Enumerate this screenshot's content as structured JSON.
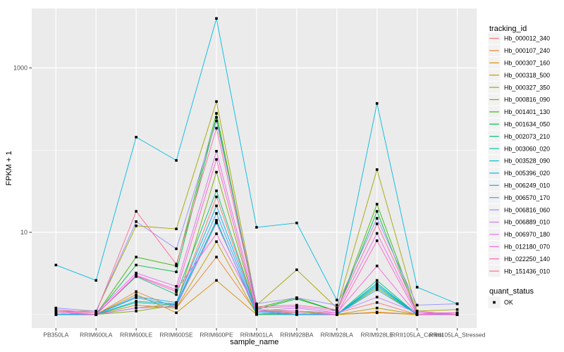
{
  "figure": {
    "background": "#FFFFFF",
    "panel_background": "#EBEBEB",
    "grid_color": "#FFFFFF",
    "axis_text_color": "#4D4D4D",
    "axis_title_color": "#000000",
    "tick_color": "#333333",
    "point_color": "#000000",
    "legend_key_fill": "#F2F2F2"
  },
  "legend": {
    "tracking_title": "tracking_id",
    "quant_title": "quant_status",
    "quant_items": [
      {
        "label": "OK",
        "marker": "filled-black-square"
      }
    ]
  },
  "chart_data": {
    "type": "line",
    "title": "",
    "xlabel": "sample_name",
    "ylabel": "FPKM + 1",
    "y_scale": "log10",
    "y_tick_values": [
      10,
      1000
    ],
    "y_tick_labels": [
      "10",
      "1000"
    ],
    "y_minor_values": [
      1,
      100
    ],
    "ylim_log": [
      0.68,
      5600
    ],
    "grid": true,
    "legend_position": "right",
    "point_marker": "filled-black-square",
    "categories": [
      "PB350LA",
      "RRIM600LA",
      "RRIM600LE",
      "RRIM600SE",
      "RRIM600PE",
      "RRIM901LA",
      "RRIM928BA",
      "RRIM928LA",
      "RRIM928LE",
      "RRII105LA_Control",
      "RRII105LA_Stressed"
    ],
    "series": [
      {
        "name": "Hb_000012_340",
        "color": "#F8766D",
        "values": [
          1.05,
          1.0,
          1.2,
          1.35,
          27,
          1.1,
          1.1,
          1.05,
          1.4,
          1.0,
          1.0
        ]
      },
      {
        "name": "Hb_000107_240",
        "color": "#EA8331",
        "values": [
          1.0,
          1.0,
          1.9,
          1.2,
          5.0,
          1.05,
          1.0,
          1.0,
          1.07,
          1.0,
          1.0
        ]
      },
      {
        "name": "Hb_000307_160",
        "color": "#D89000",
        "values": [
          1.0,
          1.0,
          1.75,
          1.05,
          2.6,
          1.0,
          1.0,
          1.0,
          1.05,
          1.0,
          1.0
        ]
      },
      {
        "name": "Hb_000318_500",
        "color": "#C09B00",
        "values": [
          1.0,
          1.0,
          1.3,
          1.2,
          7.7,
          1.0,
          1.05,
          1.0,
          1.2,
          1.0,
          1.0
        ]
      },
      {
        "name": "Hb_000327_350",
        "color": "#A3A500",
        "values": [
          1.1,
          1.1,
          12,
          11,
          390,
          1.3,
          3.5,
          1.2,
          58,
          1.1,
          1.15
        ]
      },
      {
        "name": "Hb_000816_090",
        "color": "#7CAE00",
        "values": [
          1.0,
          1.0,
          1.1,
          1.3,
          54,
          1.1,
          1.1,
          1.0,
          2.1,
          1.0,
          1.0
        ]
      },
      {
        "name": "Hb_001401_130",
        "color": "#39B600",
        "values": [
          1.05,
          1.0,
          5.0,
          3.9,
          280,
          1.2,
          1.6,
          1.1,
          22,
          1.05,
          1.0
        ]
      },
      {
        "name": "Hb_001634_050",
        "color": "#00BB4E",
        "values": [
          1.0,
          1.0,
          4.0,
          3.3,
          250,
          1.15,
          1.55,
          1.1,
          18,
          1.0,
          1.0
        ]
      },
      {
        "name": "Hb_002073_210",
        "color": "#00BF7D",
        "values": [
          1.0,
          1.0,
          2.9,
          1.75,
          32,
          1.1,
          1.05,
          1.0,
          2.6,
          1.0,
          1.0
        ]
      },
      {
        "name": "Hb_003060_020",
        "color": "#00C1A3",
        "values": [
          1.0,
          1.0,
          1.4,
          1.3,
          14,
          1.0,
          1.0,
          1.0,
          2.4,
          1.0,
          1.0
        ]
      },
      {
        "name": "Hb_003528_090",
        "color": "#00BFC4",
        "values": [
          1.0,
          1.0,
          1.45,
          1.35,
          13.5,
          1.05,
          1.0,
          1.0,
          2.2,
          1.0,
          1.0
        ]
      },
      {
        "name": "Hb_005396_020",
        "color": "#00BAE0",
        "values": [
          4.0,
          2.6,
          144,
          75,
          4000,
          11.5,
          13,
          1.5,
          370,
          2.15,
          1.35
        ]
      },
      {
        "name": "Hb_006249_010",
        "color": "#00B0F6",
        "values": [
          1.0,
          1.0,
          1.65,
          1.4,
          21,
          1.1,
          1.0,
          1.0,
          2.3,
          1.0,
          1.0
        ]
      },
      {
        "name": "Hb_006570_170",
        "color": "#35A2FF",
        "values": [
          1.0,
          1.0,
          1.6,
          1.3,
          17,
          1.05,
          1.0,
          1.0,
          2.0,
          1.0,
          1.0
        ]
      },
      {
        "name": "Hb_006816_060",
        "color": "#9590FF",
        "values": [
          1.2,
          1.1,
          13.5,
          6.3,
          227,
          1.35,
          1.6,
          1.3,
          14.8,
          1.3,
          1.35
        ]
      },
      {
        "name": "Hb_006889_010",
        "color": "#C77CFF",
        "values": [
          1.1,
          1.0,
          1.2,
          1.25,
          13,
          1.1,
          1.2,
          1.05,
          1.63,
          1.05,
          1.0
        ]
      },
      {
        "name": "Hb_006970_180",
        "color": "#E76BF3",
        "values": [
          1.15,
          1.05,
          3.2,
          2.2,
          97,
          1.2,
          1.25,
          1.1,
          9.7,
          1.05,
          1.05
        ]
      },
      {
        "name": "Hb_012180_070",
        "color": "#FA62DB",
        "values": [
          1.1,
          1.0,
          3.0,
          2.0,
          9.6,
          1.15,
          1.1,
          1.05,
          3.9,
          1.0,
          1.0
        ]
      },
      {
        "name": "Hb_022250_140",
        "color": "#FF62BC",
        "values": [
          1.05,
          1.0,
          2.95,
          1.9,
          77,
          1.1,
          1.05,
          1.0,
          7.9,
          1.0,
          1.05
        ]
      },
      {
        "name": "Hb_151436_010",
        "color": "#FF6A98",
        "values": [
          1.1,
          1.05,
          18,
          4.1,
          185,
          1.25,
          1.3,
          1.15,
          12.7,
          1.1,
          1.0
        ]
      }
    ]
  }
}
